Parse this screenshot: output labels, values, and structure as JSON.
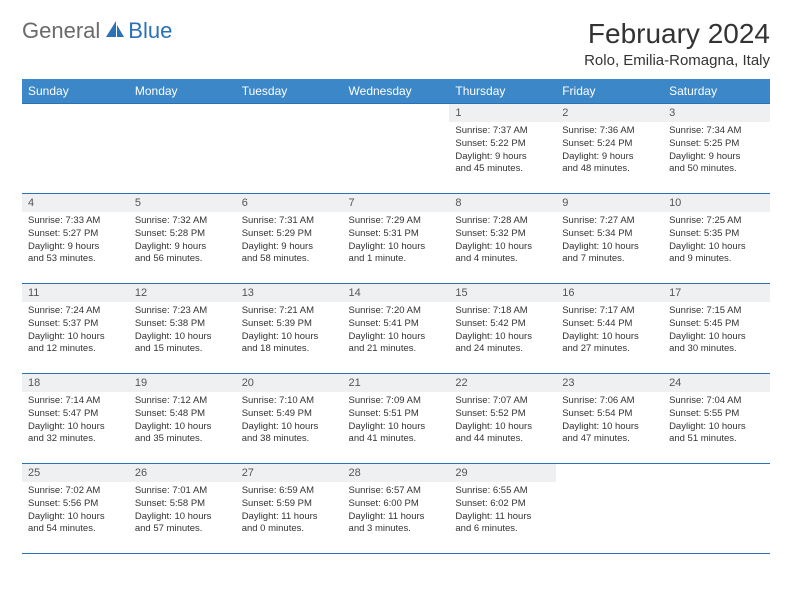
{
  "logo": {
    "general": "General",
    "blue": "Blue"
  },
  "title": "February 2024",
  "location": "Rolo, Emilia-Romagna, Italy",
  "colors": {
    "header_bg": "#3b87c8",
    "header_text": "#ffffff",
    "border": "#2a71b8",
    "daynum_bg": "#eef0f2",
    "logo_gray": "#6a6a6a",
    "logo_blue": "#2a71b8"
  },
  "weekdays": [
    "Sunday",
    "Monday",
    "Tuesday",
    "Wednesday",
    "Thursday",
    "Friday",
    "Saturday"
  ],
  "weeks": [
    [
      null,
      null,
      null,
      null,
      {
        "n": "1",
        "sr": "7:37 AM",
        "ss": "5:22 PM",
        "dlh": "9",
        "dlm": "45"
      },
      {
        "n": "2",
        "sr": "7:36 AM",
        "ss": "5:24 PM",
        "dlh": "9",
        "dlm": "48"
      },
      {
        "n": "3",
        "sr": "7:34 AM",
        "ss": "5:25 PM",
        "dlh": "9",
        "dlm": "50"
      }
    ],
    [
      {
        "n": "4",
        "sr": "7:33 AM",
        "ss": "5:27 PM",
        "dlh": "9",
        "dlm": "53"
      },
      {
        "n": "5",
        "sr": "7:32 AM",
        "ss": "5:28 PM",
        "dlh": "9",
        "dlm": "56"
      },
      {
        "n": "6",
        "sr": "7:31 AM",
        "ss": "5:29 PM",
        "dlh": "9",
        "dlm": "58"
      },
      {
        "n": "7",
        "sr": "7:29 AM",
        "ss": "5:31 PM",
        "dlh": "10",
        "dlm": "1",
        "min_lbl": "minute"
      },
      {
        "n": "8",
        "sr": "7:28 AM",
        "ss": "5:32 PM",
        "dlh": "10",
        "dlm": "4"
      },
      {
        "n": "9",
        "sr": "7:27 AM",
        "ss": "5:34 PM",
        "dlh": "10",
        "dlm": "7"
      },
      {
        "n": "10",
        "sr": "7:25 AM",
        "ss": "5:35 PM",
        "dlh": "10",
        "dlm": "9"
      }
    ],
    [
      {
        "n": "11",
        "sr": "7:24 AM",
        "ss": "5:37 PM",
        "dlh": "10",
        "dlm": "12"
      },
      {
        "n": "12",
        "sr": "7:23 AM",
        "ss": "5:38 PM",
        "dlh": "10",
        "dlm": "15"
      },
      {
        "n": "13",
        "sr": "7:21 AM",
        "ss": "5:39 PM",
        "dlh": "10",
        "dlm": "18"
      },
      {
        "n": "14",
        "sr": "7:20 AM",
        "ss": "5:41 PM",
        "dlh": "10",
        "dlm": "21"
      },
      {
        "n": "15",
        "sr": "7:18 AM",
        "ss": "5:42 PM",
        "dlh": "10",
        "dlm": "24"
      },
      {
        "n": "16",
        "sr": "7:17 AM",
        "ss": "5:44 PM",
        "dlh": "10",
        "dlm": "27"
      },
      {
        "n": "17",
        "sr": "7:15 AM",
        "ss": "5:45 PM",
        "dlh": "10",
        "dlm": "30"
      }
    ],
    [
      {
        "n": "18",
        "sr": "7:14 AM",
        "ss": "5:47 PM",
        "dlh": "10",
        "dlm": "32"
      },
      {
        "n": "19",
        "sr": "7:12 AM",
        "ss": "5:48 PM",
        "dlh": "10",
        "dlm": "35"
      },
      {
        "n": "20",
        "sr": "7:10 AM",
        "ss": "5:49 PM",
        "dlh": "10",
        "dlm": "38"
      },
      {
        "n": "21",
        "sr": "7:09 AM",
        "ss": "5:51 PM",
        "dlh": "10",
        "dlm": "41"
      },
      {
        "n": "22",
        "sr": "7:07 AM",
        "ss": "5:52 PM",
        "dlh": "10",
        "dlm": "44"
      },
      {
        "n": "23",
        "sr": "7:06 AM",
        "ss": "5:54 PM",
        "dlh": "10",
        "dlm": "47"
      },
      {
        "n": "24",
        "sr": "7:04 AM",
        "ss": "5:55 PM",
        "dlh": "10",
        "dlm": "51"
      }
    ],
    [
      {
        "n": "25",
        "sr": "7:02 AM",
        "ss": "5:56 PM",
        "dlh": "10",
        "dlm": "54"
      },
      {
        "n": "26",
        "sr": "7:01 AM",
        "ss": "5:58 PM",
        "dlh": "10",
        "dlm": "57"
      },
      {
        "n": "27",
        "sr": "6:59 AM",
        "ss": "5:59 PM",
        "dlh": "11",
        "dlm": "0"
      },
      {
        "n": "28",
        "sr": "6:57 AM",
        "ss": "6:00 PM",
        "dlh": "11",
        "dlm": "3"
      },
      {
        "n": "29",
        "sr": "6:55 AM",
        "ss": "6:02 PM",
        "dlh": "11",
        "dlm": "6"
      },
      null,
      null
    ]
  ],
  "labels": {
    "sunrise": "Sunrise:",
    "sunset": "Sunset:",
    "daylight": "Daylight:",
    "hours": "hours",
    "and": "and",
    "minutes": "minutes."
  }
}
